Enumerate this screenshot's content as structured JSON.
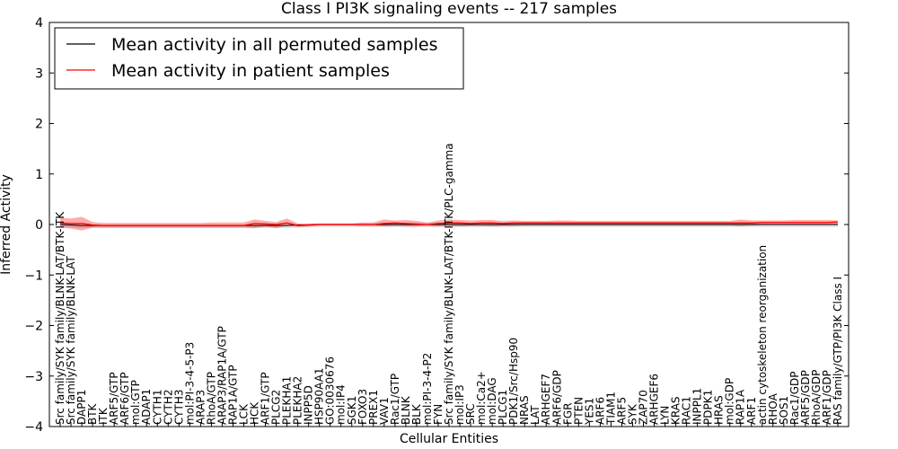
{
  "chart_data": {
    "type": "line",
    "title": "Class I PI3K signaling events -- 217 samples",
    "xlabel": "Cellular Entities",
    "ylabel": "Inferred Activity",
    "ylim": [
      -4,
      4
    ],
    "yticks": [
      "4",
      "3",
      "2",
      "1",
      "0",
      "−1",
      "−2",
      "−3",
      "−4"
    ],
    "legend": {
      "position": "top-left",
      "entries": [
        {
          "label": "Mean activity in all permuted samples",
          "color": "#000000"
        },
        {
          "label": "Mean activity in patient samples",
          "color": "#ff0000"
        }
      ]
    },
    "categories": [
      "Src family/SYK family/BLNK-LAT/BTK-ITK",
      "Src family/SYK family/BLNK-LAT",
      "DAPP1",
      "BTK",
      "ITK",
      "ARF5/GTP",
      "ARF6/GTP",
      "mol:GTP",
      "ADAP1",
      "CYTH1",
      "CYTH2",
      "CYTH3",
      "mol:PI-3-4-5-P3",
      "ARAP3",
      "RhoA/GTP",
      "ARAP3/RAP1A/GTP",
      "RAP1A/GTP",
      "LCK",
      "HCK",
      "ARF1/GTP",
      "PLCG2",
      "PLEKHA1",
      "PLEKHA2",
      "INPP5D",
      "HSP90AA1",
      "GO:0030676",
      "mol:IP4",
      "SGK1",
      "FOXO3",
      "PREX1",
      "VAV1",
      "Rac1/GTP",
      "BLNK",
      "BLK",
      "mol:PI-3-4-P2",
      "FYN",
      "Src family/SYK family/BLNK-LAT/BTK-ITK/PLC-gamma",
      "mol:IP3",
      "SRC",
      "mol:Ca2+",
      "mol:DAG",
      "PLCG1",
      "PDK1/Src/Hsp90",
      "NRAS",
      "LAT",
      "ARHGEF7",
      "ARF6/GDP",
      "FGR",
      "PTEN",
      "YES1",
      "ARF6",
      "TIAM1",
      "ARF5",
      "SYK",
      "ZAP70",
      "ARHGEF6",
      "LYN",
      "KRAS",
      "RAC1",
      "INPPL1",
      "PDPK1",
      "HRAS",
      "mol:GDP",
      "RAP1A",
      "ARF1",
      "actin cytoskeleton reorganization",
      "RHOA",
      "SOS1",
      "Rac1/GDP",
      "ARF5/GDP",
      "RhoA/GDP",
      "ARF1/GDP",
      "RAS family/GTP/PI3K Class I"
    ],
    "series": [
      {
        "name": "Mean activity in patient samples",
        "values": [
          0.03,
          0.02,
          0.02,
          -0.01,
          -0.02,
          -0.02,
          -0.02,
          -0.02,
          -0.02,
          -0.02,
          -0.02,
          -0.02,
          -0.02,
          -0.02,
          -0.02,
          -0.02,
          -0.02,
          -0.02,
          0.02,
          0.01,
          0.0,
          0.03,
          -0.02,
          -0.01,
          0.0,
          0.0,
          0.0,
          0.0,
          0.0,
          0.0,
          0.02,
          0.03,
          0.02,
          0.01,
          0.0,
          0.02,
          0.03,
          0.03,
          0.02,
          0.03,
          0.03,
          0.02,
          0.03,
          0.03,
          0.03,
          0.03,
          0.03,
          0.03,
          0.03,
          0.03,
          0.03,
          0.03,
          0.03,
          0.03,
          0.03,
          0.03,
          0.03,
          0.03,
          0.03,
          0.03,
          0.03,
          0.03,
          0.03,
          0.03,
          0.03,
          0.04,
          0.04,
          0.04,
          0.04,
          0.04,
          0.04,
          0.04,
          0.05
        ],
        "upper": [
          0.13,
          0.12,
          0.15,
          0.05,
          0.03,
          0.03,
          0.03,
          0.03,
          0.03,
          0.03,
          0.03,
          0.03,
          0.03,
          0.03,
          0.04,
          0.04,
          0.04,
          0.04,
          0.1,
          0.07,
          0.05,
          0.12,
          0.02,
          0.02,
          0.02,
          0.02,
          0.02,
          0.02,
          0.04,
          0.04,
          0.1,
          0.08,
          0.09,
          0.07,
          0.04,
          0.08,
          0.1,
          0.09,
          0.08,
          0.09,
          0.09,
          0.07,
          0.08,
          0.07,
          0.07,
          0.07,
          0.08,
          0.08,
          0.07,
          0.07,
          0.07,
          0.07,
          0.07,
          0.07,
          0.07,
          0.07,
          0.07,
          0.07,
          0.07,
          0.07,
          0.07,
          0.07,
          0.07,
          0.1,
          0.08,
          0.08,
          0.08,
          0.08,
          0.09,
          0.09,
          0.09,
          0.09,
          0.08
        ],
        "lower": [
          -0.06,
          -0.08,
          -0.12,
          -0.06,
          -0.06,
          -0.06,
          -0.06,
          -0.06,
          -0.06,
          -0.06,
          -0.06,
          -0.06,
          -0.06,
          -0.06,
          -0.06,
          -0.06,
          -0.06,
          -0.06,
          -0.07,
          -0.04,
          -0.07,
          -0.02,
          -0.05,
          -0.04,
          -0.02,
          -0.02,
          -0.02,
          -0.02,
          -0.03,
          -0.03,
          -0.04,
          -0.03,
          -0.04,
          -0.04,
          -0.03,
          -0.04,
          -0.03,
          -0.04,
          -0.03,
          -0.03,
          -0.04,
          -0.03,
          -0.03,
          -0.02,
          -0.02,
          -0.02,
          -0.02,
          -0.02,
          -0.02,
          -0.02,
          -0.02,
          -0.02,
          -0.02,
          -0.02,
          -0.02,
          -0.02,
          -0.02,
          -0.02,
          -0.02,
          -0.02,
          -0.02,
          -0.02,
          -0.02,
          -0.03,
          -0.02,
          -0.01,
          -0.01,
          -0.01,
          -0.01,
          -0.01,
          -0.01,
          -0.01,
          -0.01
        ]
      },
      {
        "name": "Mean activity in all permuted samples",
        "values": [
          0.0,
          -0.01,
          -0.02,
          -0.02,
          -0.02,
          -0.02,
          -0.02,
          -0.02,
          -0.02,
          -0.02,
          -0.02,
          -0.02,
          -0.02,
          -0.02,
          -0.02,
          -0.02,
          -0.02,
          -0.02,
          -0.02,
          -0.02,
          -0.02,
          -0.02,
          -0.01,
          -0.01,
          0.0,
          0.0,
          0.0,
          0.0,
          0.0,
          0.0,
          0.0,
          0.0,
          0.0,
          0.0,
          0.0,
          0.0,
          0.0,
          0.0,
          0.0,
          0.0,
          0.0,
          0.0,
          0.0,
          0.0,
          0.0,
          0.0,
          0.0,
          0.0,
          0.0,
          0.0,
          0.0,
          0.0,
          0.0,
          0.0,
          0.0,
          0.0,
          0.0,
          0.0,
          0.0,
          0.0,
          0.0,
          0.0,
          0.0,
          0.0,
          0.0,
          0.0,
          0.0,
          0.0,
          0.0,
          0.0,
          0.0,
          0.0,
          0.0
        ],
        "upper": [
          0.03,
          0.02,
          0.01,
          0.0,
          0.0,
          0.0,
          0.0,
          0.0,
          0.0,
          0.0,
          0.0,
          0.0,
          0.0,
          0.0,
          0.0,
          0.0,
          0.0,
          0.0,
          0.0,
          0.0,
          0.0,
          0.0,
          0.01,
          0.01,
          0.02,
          0.02,
          0.02,
          0.02,
          0.02,
          0.02,
          0.02,
          0.02,
          0.02,
          0.02,
          0.02,
          0.02,
          0.02,
          0.02,
          0.02,
          0.02,
          0.02,
          0.02,
          0.02,
          0.02,
          0.02,
          0.02,
          0.02,
          0.02,
          0.02,
          0.02,
          0.02,
          0.02,
          0.02,
          0.02,
          0.02,
          0.02,
          0.02,
          0.02,
          0.02,
          0.02,
          0.02,
          0.02,
          0.02,
          0.02,
          0.02,
          0.02,
          0.02,
          0.02,
          0.02,
          0.02,
          0.02,
          0.02,
          0.02
        ],
        "lower": [
          -0.05,
          -0.06,
          -0.07,
          -0.07,
          -0.07,
          -0.07,
          -0.07,
          -0.07,
          -0.07,
          -0.07,
          -0.07,
          -0.07,
          -0.07,
          -0.07,
          -0.07,
          -0.07,
          -0.07,
          -0.07,
          -0.07,
          -0.07,
          -0.07,
          -0.07,
          -0.06,
          -0.06,
          -0.05,
          -0.05,
          -0.05,
          -0.05,
          -0.05,
          -0.05,
          -0.05,
          -0.05,
          -0.05,
          -0.05,
          -0.05,
          -0.05,
          -0.05,
          -0.05,
          -0.05,
          -0.05,
          -0.05,
          -0.05,
          -0.05,
          -0.05,
          -0.05,
          -0.05,
          -0.05,
          -0.05,
          -0.05,
          -0.05,
          -0.05,
          -0.05,
          -0.05,
          -0.05,
          -0.05,
          -0.05,
          -0.05,
          -0.05,
          -0.05,
          -0.05,
          -0.05,
          -0.05,
          -0.05,
          -0.05,
          -0.05,
          -0.05,
          -0.05,
          -0.05,
          -0.05,
          -0.05,
          -0.05,
          -0.05,
          -0.05
        ]
      }
    ]
  }
}
